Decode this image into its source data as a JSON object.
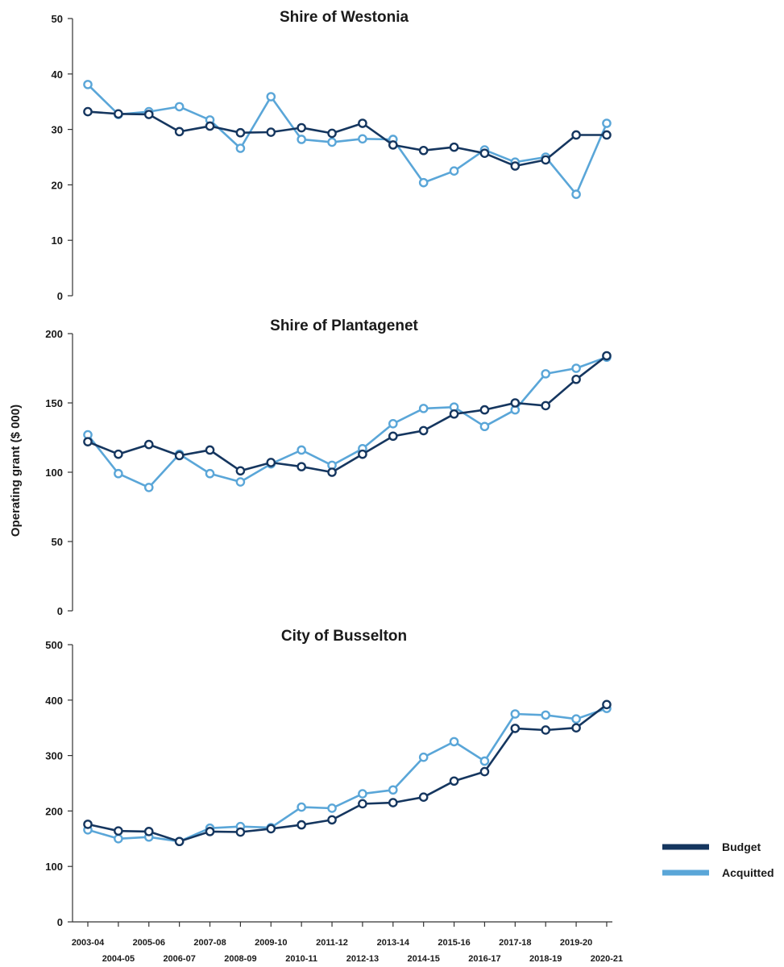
{
  "colors": {
    "budget": "#15365f",
    "acquitted": "#5aa6d8",
    "axis": "#333333"
  },
  "ylabel": "Operating grant ($ 000)",
  "legend": {
    "placement": "bottom-right",
    "items": [
      "Budget",
      "Acquitted"
    ]
  },
  "chart_data": [
    {
      "type": "line",
      "title": "Shire of Westonia",
      "ylim": [
        0,
        50
      ],
      "yticks": [
        0,
        10,
        20,
        30,
        40,
        50
      ],
      "categories": [
        "2003-04",
        "2004-05",
        "2005-06",
        "2006-07",
        "2007-08",
        "2008-09",
        "2009-10",
        "2010-11",
        "2011-12",
        "2012-13",
        "2013-14",
        "2014-15",
        "2015-16",
        "2016-17",
        "2017-18",
        "2018-19",
        "2019-20",
        "2020-21"
      ],
      "series": [
        {
          "name": "Budget",
          "values": [
            33.2,
            32.8,
            32.7,
            29.6,
            30.6,
            29.4,
            29.5,
            30.3,
            29.3,
            31.1,
            27.2,
            26.2,
            26.8,
            25.7,
            23.4,
            24.5,
            29.0,
            29.0
          ]
        },
        {
          "name": "Acquitted",
          "values": [
            38.1,
            32.7,
            33.2,
            34.1,
            31.7,
            26.6,
            35.9,
            28.2,
            27.7,
            28.3,
            28.2,
            20.4,
            22.5,
            26.3,
            24.1,
            25.0,
            18.3,
            31.1
          ]
        }
      ]
    },
    {
      "type": "line",
      "title": "Shire of Plantagenet",
      "ylim": [
        0,
        200
      ],
      "yticks": [
        0,
        50,
        100,
        150,
        200
      ],
      "categories": [
        "2003-04",
        "2004-05",
        "2005-06",
        "2006-07",
        "2007-08",
        "2008-09",
        "2009-10",
        "2010-11",
        "2011-12",
        "2012-13",
        "2013-14",
        "2014-15",
        "2015-16",
        "2016-17",
        "2017-18",
        "2018-19",
        "2019-20",
        "2020-21"
      ],
      "series": [
        {
          "name": "Budget",
          "values": [
            122,
            113,
            120,
            112,
            116,
            101,
            107,
            104,
            100,
            113,
            126,
            130,
            142,
            145,
            150,
            148,
            167,
            184
          ]
        },
        {
          "name": "Acquitted",
          "values": [
            127,
            99,
            89,
            113,
            99,
            93,
            106,
            116,
            105,
            117,
            135,
            146,
            147,
            133,
            145,
            171,
            175,
            183
          ]
        }
      ]
    },
    {
      "type": "line",
      "title": "City of Busselton",
      "ylim": [
        0,
        500
      ],
      "yticks": [
        0,
        100,
        200,
        300,
        400,
        500
      ],
      "categories": [
        "2003-04",
        "2004-05",
        "2005-06",
        "2006-07",
        "2007-08",
        "2008-09",
        "2009-10",
        "2010-11",
        "2011-12",
        "2012-13",
        "2013-14",
        "2014-15",
        "2015-16",
        "2016-17",
        "2017-18",
        "2018-19",
        "2019-20",
        "2020-21"
      ],
      "series": [
        {
          "name": "Budget",
          "values": [
            176,
            164,
            163,
            145,
            163,
            162,
            168,
            175,
            184,
            213,
            215,
            225,
            254,
            271,
            349,
            346,
            350,
            392
          ]
        },
        {
          "name": "Acquitted",
          "values": [
            166,
            150,
            153,
            145,
            169,
            172,
            170,
            207,
            205,
            231,
            238,
            297,
            325,
            290,
            375,
            373,
            366,
            385
          ]
        }
      ]
    }
  ]
}
